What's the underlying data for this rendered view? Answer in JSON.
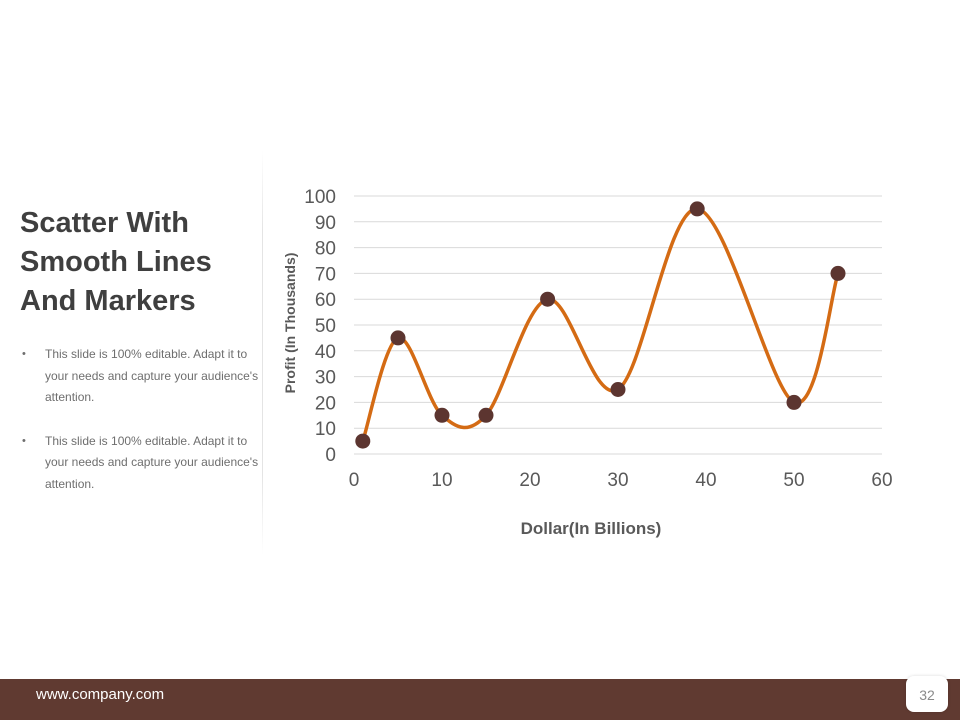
{
  "slide": {
    "title_lines": [
      "Scatter With",
      "Smooth Lines",
      "And Markers"
    ],
    "bullets": [
      "This slide is 100% editable. Adapt it to your needs and capture your audience's attention.",
      "This slide is 100% editable. Adapt it to your needs and capture your audience's attention."
    ],
    "bullet_icon": "bullet-dot"
  },
  "footer": {
    "url": "www.company.com",
    "page_number": "32"
  },
  "colors": {
    "line": "#d46b14",
    "marker": "#5c3530",
    "footer_bg": "#603a31",
    "gridline": "#d9d9d9"
  },
  "chart_data": {
    "type": "scatter",
    "title": "",
    "xlabel": "Dollar(In Billions)",
    "ylabel": "Profit  (In Thousands)",
    "xlim": [
      0,
      60
    ],
    "ylim": [
      0,
      100
    ],
    "x_ticks": [
      0,
      10,
      20,
      30,
      40,
      50,
      60
    ],
    "y_ticks": [
      0,
      10,
      20,
      30,
      40,
      50,
      60,
      70,
      80,
      90,
      100
    ],
    "grid": true,
    "smooth_lines": true,
    "markers": true,
    "series": [
      {
        "x": [
          1,
          5,
          10,
          15,
          22,
          30,
          39,
          50,
          55
        ],
        "y": [
          5,
          45,
          15,
          15,
          60,
          25,
          95,
          20,
          70
        ]
      }
    ]
  }
}
